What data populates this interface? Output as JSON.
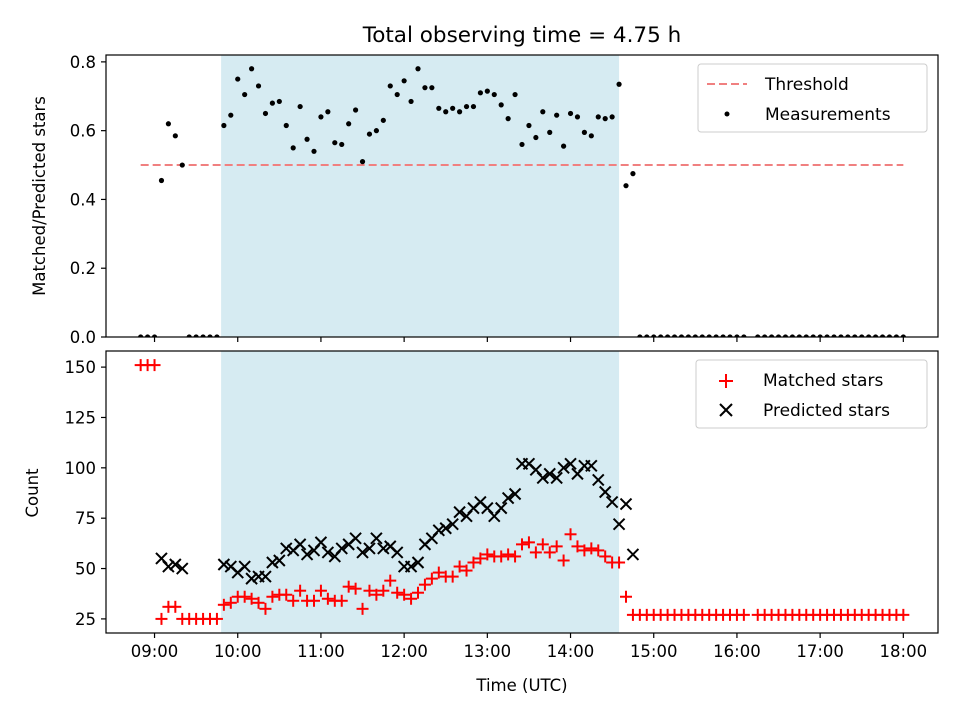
{
  "figure": {
    "title": "Total observing time = 4.75 h"
  },
  "colors": {
    "threshold": "#f08080",
    "measurement": "#000000",
    "matched": "#ff0000",
    "predicted": "#000000",
    "observing_window": "#add8e6"
  },
  "chart_data": [
    {
      "type": "scatter",
      "ylabel": "Matched/Predicted stars",
      "xlabel": "",
      "xlim": [
        "08:25",
        "18:25"
      ],
      "ylim": [
        0,
        0.82
      ],
      "x_ticks": [
        "09:00",
        "10:00",
        "11:00",
        "12:00",
        "13:00",
        "14:00",
        "15:00",
        "16:00",
        "17:00",
        "18:00"
      ],
      "y_ticks": [
        "0.0",
        "0.2",
        "0.4",
        "0.6",
        "0.8"
      ],
      "legend_position": "top-right",
      "observing_window": [
        "09:48",
        "14:35"
      ],
      "threshold": {
        "name": "Threshold",
        "y": 0.5,
        "x_range": [
          "08:50",
          "18:00"
        ]
      },
      "series": [
        {
          "name": "Measurements",
          "x": [
            "08:50",
            "08:55",
            "09:00",
            "09:05",
            "09:10",
            "09:15",
            "09:20",
            "09:25",
            "09:30",
            "09:35",
            "09:40",
            "09:45",
            "09:50",
            "09:55",
            "10:00",
            "10:05",
            "10:10",
            "10:15",
            "10:20",
            "10:25",
            "10:30",
            "10:35",
            "10:40",
            "10:45",
            "10:50",
            "10:55",
            "11:00",
            "11:05",
            "11:10",
            "11:15",
            "11:20",
            "11:25",
            "11:30",
            "11:35",
            "11:40",
            "11:45",
            "11:50",
            "11:55",
            "12:00",
            "12:05",
            "12:10",
            "12:15",
            "12:20",
            "12:25",
            "12:30",
            "12:35",
            "12:40",
            "12:45",
            "12:50",
            "12:55",
            "13:00",
            "13:05",
            "13:10",
            "13:15",
            "13:20",
            "13:25",
            "13:30",
            "13:35",
            "13:40",
            "13:45",
            "13:50",
            "13:55",
            "14:00",
            "14:05",
            "14:10",
            "14:15",
            "14:20",
            "14:25",
            "14:30",
            "14:35",
            "14:40",
            "14:45",
            "14:50",
            "14:55",
            "15:00",
            "15:05",
            "15:10",
            "15:15",
            "15:20",
            "15:25",
            "15:30",
            "15:35",
            "15:40",
            "15:45",
            "15:50",
            "15:55",
            "16:00",
            "16:05",
            "16:15",
            "16:20",
            "16:25",
            "16:30",
            "16:35",
            "16:40",
            "16:45",
            "16:50",
            "16:55",
            "17:00",
            "17:05",
            "17:10",
            "17:15",
            "17:20",
            "17:25",
            "17:30",
            "17:35",
            "17:40",
            "17:45",
            "17:50",
            "17:55",
            "18:00"
          ],
          "y": [
            0,
            0,
            0,
            0.455,
            0.62,
            0.585,
            0.5,
            0,
            0,
            0,
            0,
            0,
            0.615,
            0.645,
            0.75,
            0.705,
            0.78,
            0.73,
            0.65,
            0.68,
            0.685,
            0.615,
            0.55,
            0.67,
            0.575,
            0.54,
            0.64,
            0.655,
            0.565,
            0.56,
            0.62,
            0.66,
            0.51,
            0.59,
            0.6,
            0.63,
            0.73,
            0.705,
            0.745,
            0.685,
            0.78,
            0.725,
            0.725,
            0.665,
            0.655,
            0.665,
            0.655,
            0.67,
            0.67,
            0.71,
            0.715,
            0.705,
            0.675,
            0.635,
            0.705,
            0.56,
            0.615,
            0.58,
            0.655,
            0.595,
            0.645,
            0.555,
            0.65,
            0.64,
            0.595,
            0.585,
            0.64,
            0.635,
            0.64,
            0.735,
            0.44,
            0.475,
            0,
            0,
            0,
            0,
            0,
            0,
            0,
            0,
            0,
            0,
            0,
            0,
            0,
            0,
            0,
            0,
            0,
            0,
            0,
            0,
            0,
            0,
            0,
            0,
            0,
            0,
            0,
            0,
            0,
            0,
            0,
            0,
            0,
            0,
            0,
            0,
            0,
            0
          ]
        }
      ]
    },
    {
      "type": "scatter",
      "ylabel": "Count",
      "xlabel": "Time (UTC)",
      "xlim": [
        "08:25",
        "18:25"
      ],
      "ylim": [
        18,
        158
      ],
      "x_ticks": [
        "09:00",
        "10:00",
        "11:00",
        "12:00",
        "13:00",
        "14:00",
        "15:00",
        "16:00",
        "17:00",
        "18:00"
      ],
      "y_ticks": [
        "25",
        "50",
        "75",
        "100",
        "125",
        "150"
      ],
      "legend_position": "top-right",
      "observing_window": [
        "09:48",
        "14:35"
      ],
      "series": [
        {
          "name": "Matched stars",
          "marker": "plus",
          "x": [
            "08:50",
            "08:55",
            "09:00",
            "09:05",
            "09:10",
            "09:15",
            "09:20",
            "09:25",
            "09:30",
            "09:35",
            "09:40",
            "09:45",
            "09:50",
            "09:55",
            "10:00",
            "10:05",
            "10:10",
            "10:15",
            "10:20",
            "10:25",
            "10:30",
            "10:35",
            "10:40",
            "10:45",
            "10:50",
            "10:55",
            "11:00",
            "11:05",
            "11:10",
            "11:15",
            "11:20",
            "11:25",
            "11:30",
            "11:35",
            "11:40",
            "11:45",
            "11:50",
            "11:55",
            "12:00",
            "12:05",
            "12:10",
            "12:15",
            "12:20",
            "12:25",
            "12:30",
            "12:35",
            "12:40",
            "12:45",
            "12:50",
            "12:55",
            "13:00",
            "13:05",
            "13:10",
            "13:15",
            "13:20",
            "13:25",
            "13:30",
            "13:35",
            "13:40",
            "13:45",
            "13:50",
            "13:55",
            "14:00",
            "14:05",
            "14:10",
            "14:15",
            "14:20",
            "14:25",
            "14:30",
            "14:35",
            "14:40",
            "14:45",
            "14:50",
            "14:55",
            "15:00",
            "15:05",
            "15:10",
            "15:15",
            "15:20",
            "15:25",
            "15:30",
            "15:35",
            "15:40",
            "15:45",
            "15:50",
            "15:55",
            "16:00",
            "16:05",
            "16:15",
            "16:20",
            "16:25",
            "16:30",
            "16:35",
            "16:40",
            "16:45",
            "16:50",
            "16:55",
            "17:00",
            "17:05",
            "17:10",
            "17:15",
            "17:20",
            "17:25",
            "17:30",
            "17:35",
            "17:40",
            "17:45",
            "17:50",
            "17:55",
            "18:00"
          ],
          "y": [
            151,
            151,
            151,
            25,
            31,
            31,
            25,
            25,
            25,
            25,
            25,
            25,
            32,
            33,
            36,
            36,
            35,
            33,
            30,
            36,
            37,
            37,
            34,
            39,
            34,
            34,
            39,
            35,
            34,
            34,
            41,
            40,
            30,
            39,
            37,
            39,
            44,
            38,
            37,
            35,
            38,
            42,
            45,
            48,
            46,
            46,
            51,
            49,
            53,
            55,
            57,
            56,
            56,
            57,
            56,
            62,
            63,
            58,
            62,
            58,
            61,
            54,
            67,
            61,
            59,
            60,
            59,
            56,
            53,
            53,
            36,
            27,
            27,
            27,
            27,
            27,
            27,
            27,
            27,
            27,
            27,
            27,
            27,
            27,
            27,
            27,
            27,
            27,
            27,
            27,
            27,
            27,
            27,
            27,
            27,
            27,
            27,
            27,
            27,
            27,
            27,
            27,
            27,
            27,
            27,
            27,
            27,
            27,
            27,
            27
          ]
        },
        {
          "name": "Predicted stars",
          "marker": "cross",
          "x": [
            "09:05",
            "09:10",
            "09:15",
            "09:20",
            "09:50",
            "09:55",
            "10:00",
            "10:05",
            "10:10",
            "10:15",
            "10:20",
            "10:25",
            "10:30",
            "10:35",
            "10:40",
            "10:45",
            "10:50",
            "10:55",
            "11:00",
            "11:05",
            "11:10",
            "11:15",
            "11:20",
            "11:25",
            "11:30",
            "11:35",
            "11:40",
            "11:45",
            "11:50",
            "11:55",
            "12:00",
            "12:05",
            "12:10",
            "12:15",
            "12:20",
            "12:25",
            "12:30",
            "12:35",
            "12:40",
            "12:45",
            "12:50",
            "12:55",
            "13:00",
            "13:05",
            "13:10",
            "13:15",
            "13:20",
            "13:25",
            "13:30",
            "13:35",
            "13:40",
            "13:45",
            "13:50",
            "13:55",
            "14:00",
            "14:05",
            "14:10",
            "14:15",
            "14:20",
            "14:25",
            "14:30",
            "14:35",
            "14:40",
            "14:45"
          ],
          "y": [
            55,
            51,
            52,
            50,
            52,
            51,
            48,
            51,
            45,
            46,
            46,
            53,
            54,
            60,
            59,
            62,
            57,
            59,
            63,
            58,
            56,
            60,
            62,
            65,
            58,
            60,
            65,
            60,
            61,
            58,
            51,
            51,
            53,
            62,
            65,
            69,
            70,
            72,
            78,
            76,
            80,
            83,
            80,
            76,
            80,
            85,
            87,
            102,
            102,
            99,
            95,
            97,
            95,
            100,
            102,
            97,
            101,
            101,
            94,
            88,
            83,
            72,
            82,
            57
          ]
        }
      ]
    }
  ]
}
